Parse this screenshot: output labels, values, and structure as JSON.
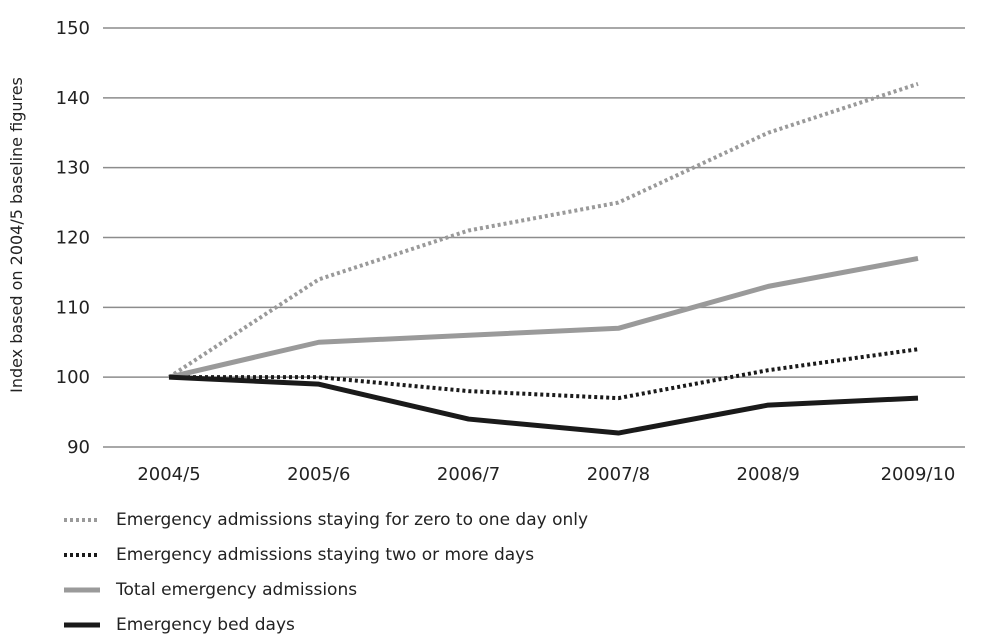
{
  "chart_data": {
    "type": "line",
    "ylabel": "Index based on 2004/5 baseline figures",
    "xlabel": "",
    "title": "",
    "categories": [
      "2004/5",
      "2005/6",
      "2006/7",
      "2007/8",
      "2008/9",
      "2009/10"
    ],
    "ylim": [
      90,
      150
    ],
    "yticks": [
      90,
      100,
      110,
      120,
      130,
      140,
      150
    ],
    "grid": "horizontal",
    "legend_position": "bottom-left",
    "series": [
      {
        "name": "Emergency admissions staying for zero to one day only",
        "values": [
          100,
          114,
          121,
          125,
          135,
          142
        ],
        "color": "#9a9a9a",
        "style": "dotted"
      },
      {
        "name": "Emergency admissions staying two or more days",
        "values": [
          100,
          100,
          98,
          97,
          101,
          104
        ],
        "color": "#1a1a1a",
        "style": "dotted"
      },
      {
        "name": "Total emergency admissions",
        "values": [
          100,
          105,
          106,
          107,
          113,
          117
        ],
        "color": "#9a9a9a",
        "style": "solid"
      },
      {
        "name": "Emergency bed days",
        "values": [
          100,
          99,
          94,
          92,
          96,
          97
        ],
        "color": "#1a1a1a",
        "style": "solid"
      }
    ]
  }
}
